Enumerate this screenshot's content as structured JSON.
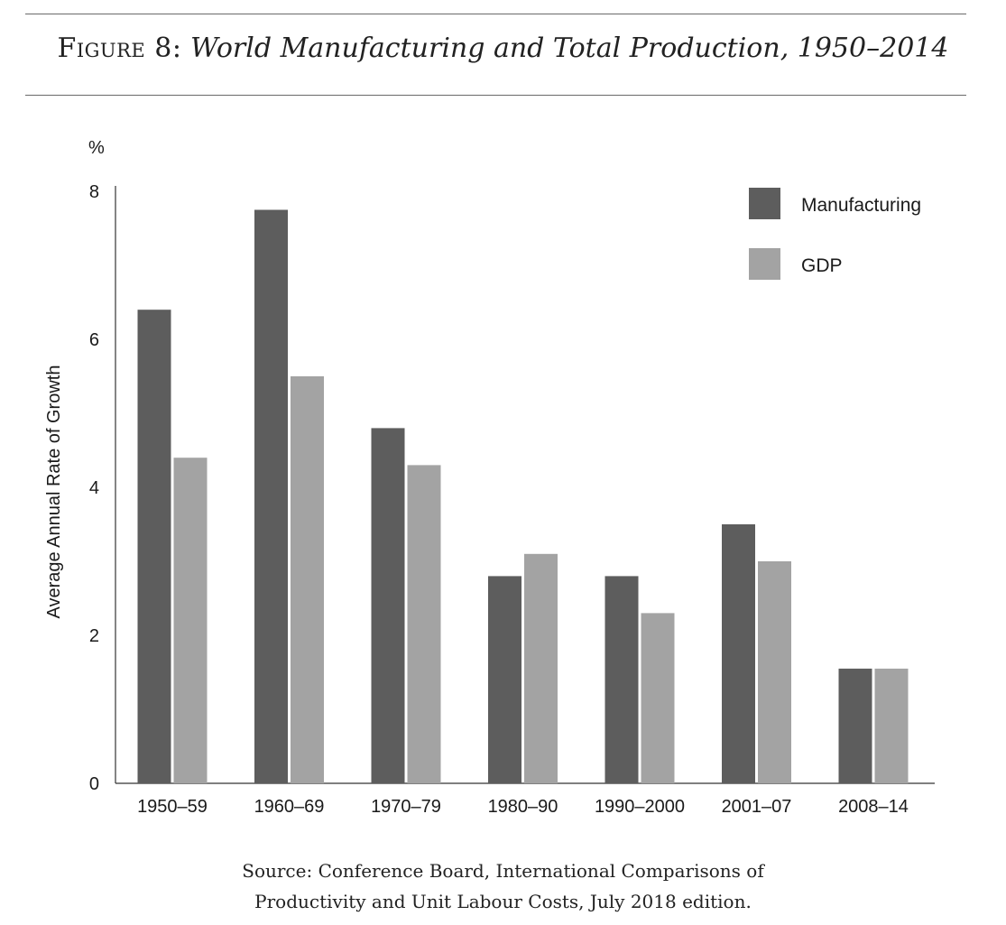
{
  "figure": {
    "label": "Figure 8:",
    "title": "World Manufacturing and Total Production, 1950–2014"
  },
  "source_lines": [
    "Source: Conference Board, International Comparisons of",
    "Productivity and Unit Labour Costs, July 2018 edition."
  ],
  "colors": {
    "manufacturing": "#5d5d5d",
    "gdp": "#a3a3a3",
    "axis": "#333333"
  },
  "chart_data": {
    "type": "bar",
    "title": "World Manufacturing and Total Production, 1950–2014",
    "ylabel": "Average Annual Rate of Growth",
    "yunit": "%",
    "ylim": [
      0,
      8
    ],
    "yticks": [
      0,
      2,
      4,
      6,
      8
    ],
    "categories": [
      "1950–59",
      "1960–69",
      "1970–79",
      "1980–90",
      "1990–2000",
      "2001–07",
      "2008–14"
    ],
    "series": [
      {
        "name": "Manufacturing",
        "values": [
          6.4,
          7.75,
          4.8,
          2.8,
          2.8,
          3.5,
          1.55
        ]
      },
      {
        "name": "GDP",
        "values": [
          4.4,
          5.5,
          4.3,
          3.1,
          2.3,
          3.0,
          1.55
        ]
      }
    ],
    "legend": "top-right",
    "grid": false
  }
}
